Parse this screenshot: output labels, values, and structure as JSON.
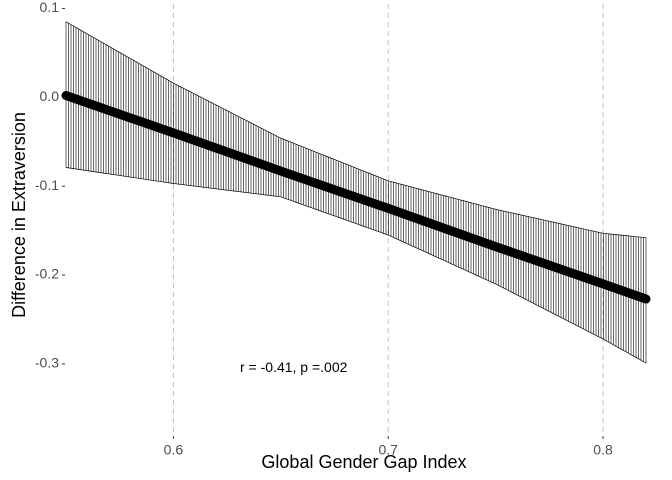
{
  "chart_data": {
    "type": "line",
    "xlabel": "Global Gender Gap Index",
    "ylabel": "Difference in Extraversion",
    "xlim": [
      0.55,
      0.82
    ],
    "ylim": [
      -0.38,
      0.105
    ],
    "x_ticks": [
      0.6,
      0.7,
      0.8
    ],
    "x_tick_labels": [
      "0.6",
      "0.7",
      "0.8"
    ],
    "y_ticks": [
      0.1,
      0.0,
      -0.1,
      -0.2,
      -0.3
    ],
    "y_tick_labels": [
      "0.1",
      "0.0",
      "-0.1",
      "-0.2",
      "-0.3"
    ],
    "grid": "vertical major lines, dashed",
    "series": [
      {
        "x": [
          0.55,
          0.6,
          0.65,
          0.7,
          0.75,
          0.8,
          0.82
        ],
        "y": [
          0.002,
          -0.04,
          -0.083,
          -0.125,
          -0.168,
          -0.21,
          -0.227
        ],
        "ci_lower": [
          -0.079,
          -0.097,
          -0.112,
          -0.155,
          -0.21,
          -0.272,
          -0.299
        ],
        "ci_upper": [
          0.085,
          0.016,
          -0.046,
          -0.094,
          -0.126,
          -0.153,
          -0.158
        ]
      }
    ],
    "annotation": "r = -0.41, p =.002",
    "annotation_position": {
      "x": 0.656,
      "y": -0.305
    }
  },
  "colors": {
    "line": "#000000",
    "ribbon_hatch": "#000000",
    "grid": "#bfbfbf",
    "tick_label": "#4d4d4d",
    "tick_mark": "#333333"
  }
}
